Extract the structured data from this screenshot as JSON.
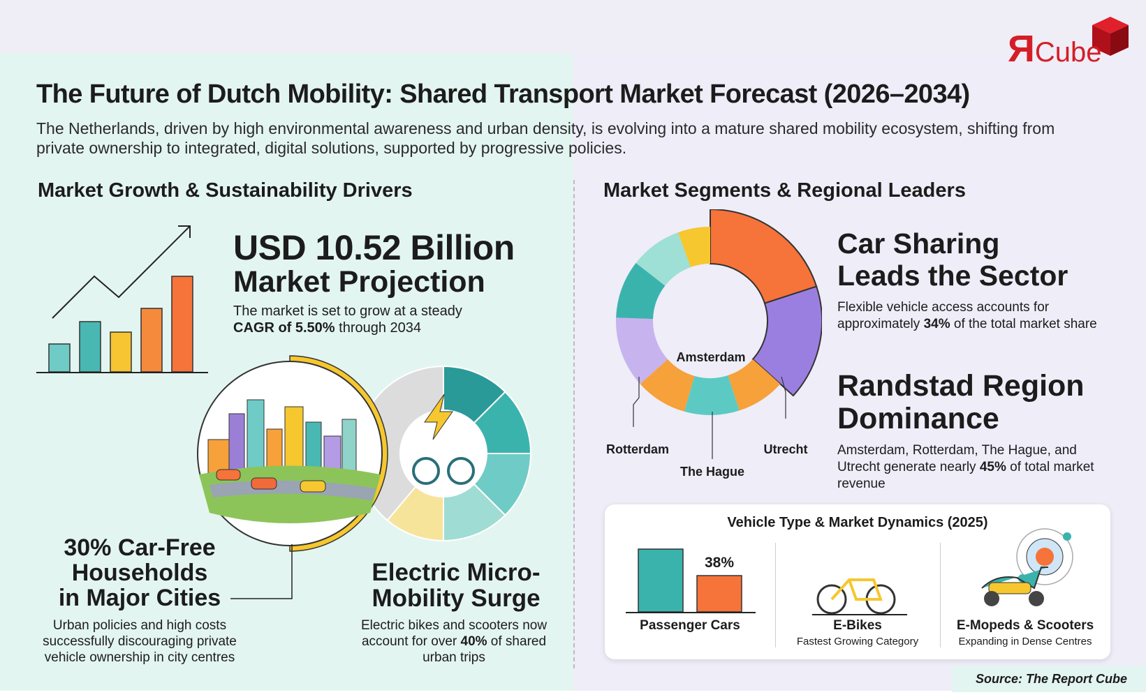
{
  "logo": {
    "mark": "Я",
    "text": "Cube"
  },
  "header": {
    "title": "The Future of Dutch Mobility: Shared Transport Market Forecast (2026–2034)",
    "subtitle": "The Netherlands, driven by high environmental awareness and urban density, is evolving into a mature shared mobility ecosystem, shifting from private ownership to integrated, digital solutions, supported by progressive policies."
  },
  "left": {
    "heading": "Market Growth & Sustainability Drivers",
    "projection": {
      "value": "USD 10.52 Billion",
      "label": "Market Projection",
      "text": [
        "The market is set to grow at a steady ",
        "CAGR of 5.50%",
        " through 2034"
      ]
    },
    "car_free": {
      "title": [
        "30% Car-Free",
        "Households",
        "in Major Cities"
      ],
      "text": "Urban policies and high costs successfully discouraging private vehicle ownership in city centres"
    },
    "micro": {
      "title": [
        "Electric Micro-",
        "Mobility Surge"
      ],
      "text": [
        "Electric bikes and scooters now account for over ",
        "40%",
        " of shared urban trips"
      ]
    }
  },
  "right": {
    "heading": "Market Segments & Regional Leaders",
    "donut_labels": [
      "Amsterdam",
      "Rotterdam",
      "The Hague",
      "Utrecht"
    ],
    "car_sharing": {
      "title": [
        "Car Sharing",
        "Leads the Sector"
      ],
      "text": [
        "Flexible vehicle access accounts for approximately ",
        "34%",
        " of the total market share"
      ]
    },
    "randstad": {
      "title": [
        "Randstad Region",
        "Dominance"
      ],
      "text": [
        "Amsterdam, Rotterdam, The Hague, and Utrecht generate nearly ",
        "45%",
        " of total market revenue"
      ]
    },
    "panel": {
      "title": "Vehicle Type & Market Dynamics (2025)",
      "items": [
        {
          "label": "Passenger Cars",
          "value_label": "38%"
        },
        {
          "label": "E-Bikes",
          "sub": "Fastest Growing Category"
        },
        {
          "label": "E-Mopeds & Scooters",
          "sub": "Expanding in Dense Centres"
        }
      ]
    }
  },
  "source": "Source: The Report Cube"
}
